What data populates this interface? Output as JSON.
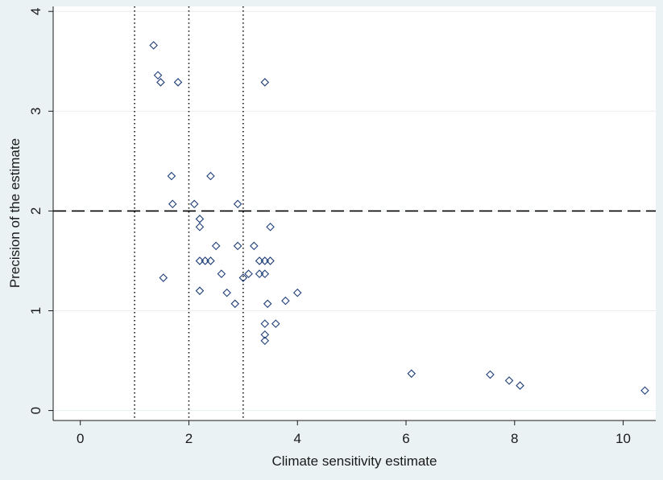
{
  "chart_data": {
    "type": "scatter",
    "title": "",
    "xlabel": "Climate sensitivity estimate",
    "ylabel": "Precision of the estimate",
    "xlim": [
      -0.5,
      10.6
    ],
    "ylim": [
      -0.1,
      4.05
    ],
    "xticks": [
      0,
      2,
      4,
      6,
      8,
      10
    ],
    "yticks": [
      0,
      1,
      2,
      3,
      4
    ],
    "grid": "horizontal",
    "legend": "none",
    "vertical_reference_lines": [
      1,
      2,
      3
    ],
    "horizontal_reference_line": 2,
    "marker": "hollow-diamond",
    "colors": {
      "background": "#eaf2f3",
      "plot_area": "#ffffff",
      "gridline": "#e8eef0",
      "marker": "#1f3f78",
      "reference_line": "#000000"
    },
    "series": [
      {
        "points": [
          [
            1.35,
            3.66
          ],
          [
            1.43,
            3.36
          ],
          [
            1.48,
            3.29
          ],
          [
            1.8,
            3.29
          ],
          [
            3.4,
            3.29
          ],
          [
            1.68,
            2.35
          ],
          [
            2.4,
            2.35
          ],
          [
            1.7,
            2.07
          ],
          [
            2.1,
            2.07
          ],
          [
            2.9,
            2.07
          ],
          [
            2.2,
            1.92
          ],
          [
            2.2,
            1.84
          ],
          [
            3.5,
            1.84
          ],
          [
            2.5,
            1.65
          ],
          [
            2.9,
            1.65
          ],
          [
            3.2,
            1.65
          ],
          [
            2.2,
            1.5
          ],
          [
            2.3,
            1.5
          ],
          [
            2.4,
            1.5
          ],
          [
            3.3,
            1.5
          ],
          [
            3.4,
            1.5
          ],
          [
            3.5,
            1.5
          ],
          [
            1.53,
            1.33
          ],
          [
            2.6,
            1.37
          ],
          [
            3.0,
            1.33
          ],
          [
            3.1,
            1.37
          ],
          [
            3.3,
            1.37
          ],
          [
            3.4,
            1.37
          ],
          [
            2.2,
            1.2
          ],
          [
            2.7,
            1.18
          ],
          [
            2.85,
            1.07
          ],
          [
            3.45,
            1.07
          ],
          [
            3.78,
            1.1
          ],
          [
            4.0,
            1.18
          ],
          [
            3.4,
            0.87
          ],
          [
            3.6,
            0.87
          ],
          [
            3.4,
            0.76
          ],
          [
            3.4,
            0.7
          ],
          [
            6.1,
            0.37
          ],
          [
            7.55,
            0.36
          ],
          [
            7.9,
            0.3
          ],
          [
            8.1,
            0.25
          ],
          [
            10.4,
            0.2
          ]
        ]
      }
    ]
  }
}
